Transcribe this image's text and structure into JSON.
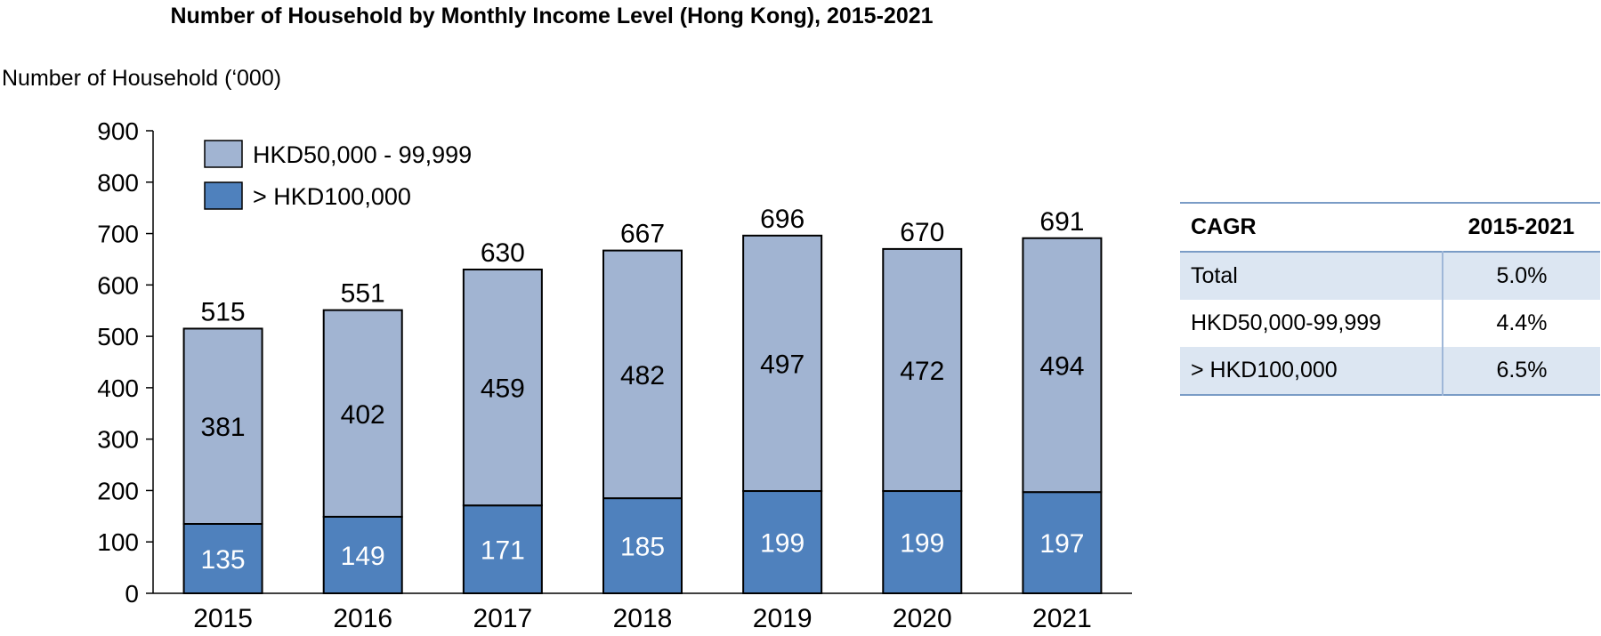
{
  "chart_data": {
    "type": "bar",
    "stacked": true,
    "title": "Number of Household by Monthly Income Level (Hong Kong), 2015-2021",
    "ylabel": "Number of Household (‘000)",
    "ylim": [
      0,
      900
    ],
    "yticks": [
      "0",
      "100",
      "200",
      "300",
      "400",
      "500",
      "600",
      "700",
      "800",
      "900"
    ],
    "categories": [
      "2015",
      "2016",
      "2017",
      "2018",
      "2019",
      "2020",
      "2021"
    ],
    "series": [
      {
        "name": "> HKD100,000",
        "color": "#4f81bd",
        "values": [
          135,
          149,
          171,
          185,
          199,
          199,
          197
        ]
      },
      {
        "name": "HKD50,000 - 99,999",
        "color": "#a1b4d2",
        "values": [
          381,
          402,
          459,
          482,
          497,
          472,
          494
        ]
      }
    ],
    "totals": [
      515,
      551,
      630,
      667,
      696,
      670,
      691
    ],
    "legend": "top-left",
    "grid": false
  },
  "cagr_table": {
    "header": {
      "label": "CAGR",
      "period": "2015-2021"
    },
    "rows": [
      {
        "label": "Total",
        "value": "5.0%"
      },
      {
        "label": "HKD50,000-99,999",
        "value": "4.4%"
      },
      {
        "label": "> HKD100,000",
        "value": "6.5%"
      }
    ]
  }
}
